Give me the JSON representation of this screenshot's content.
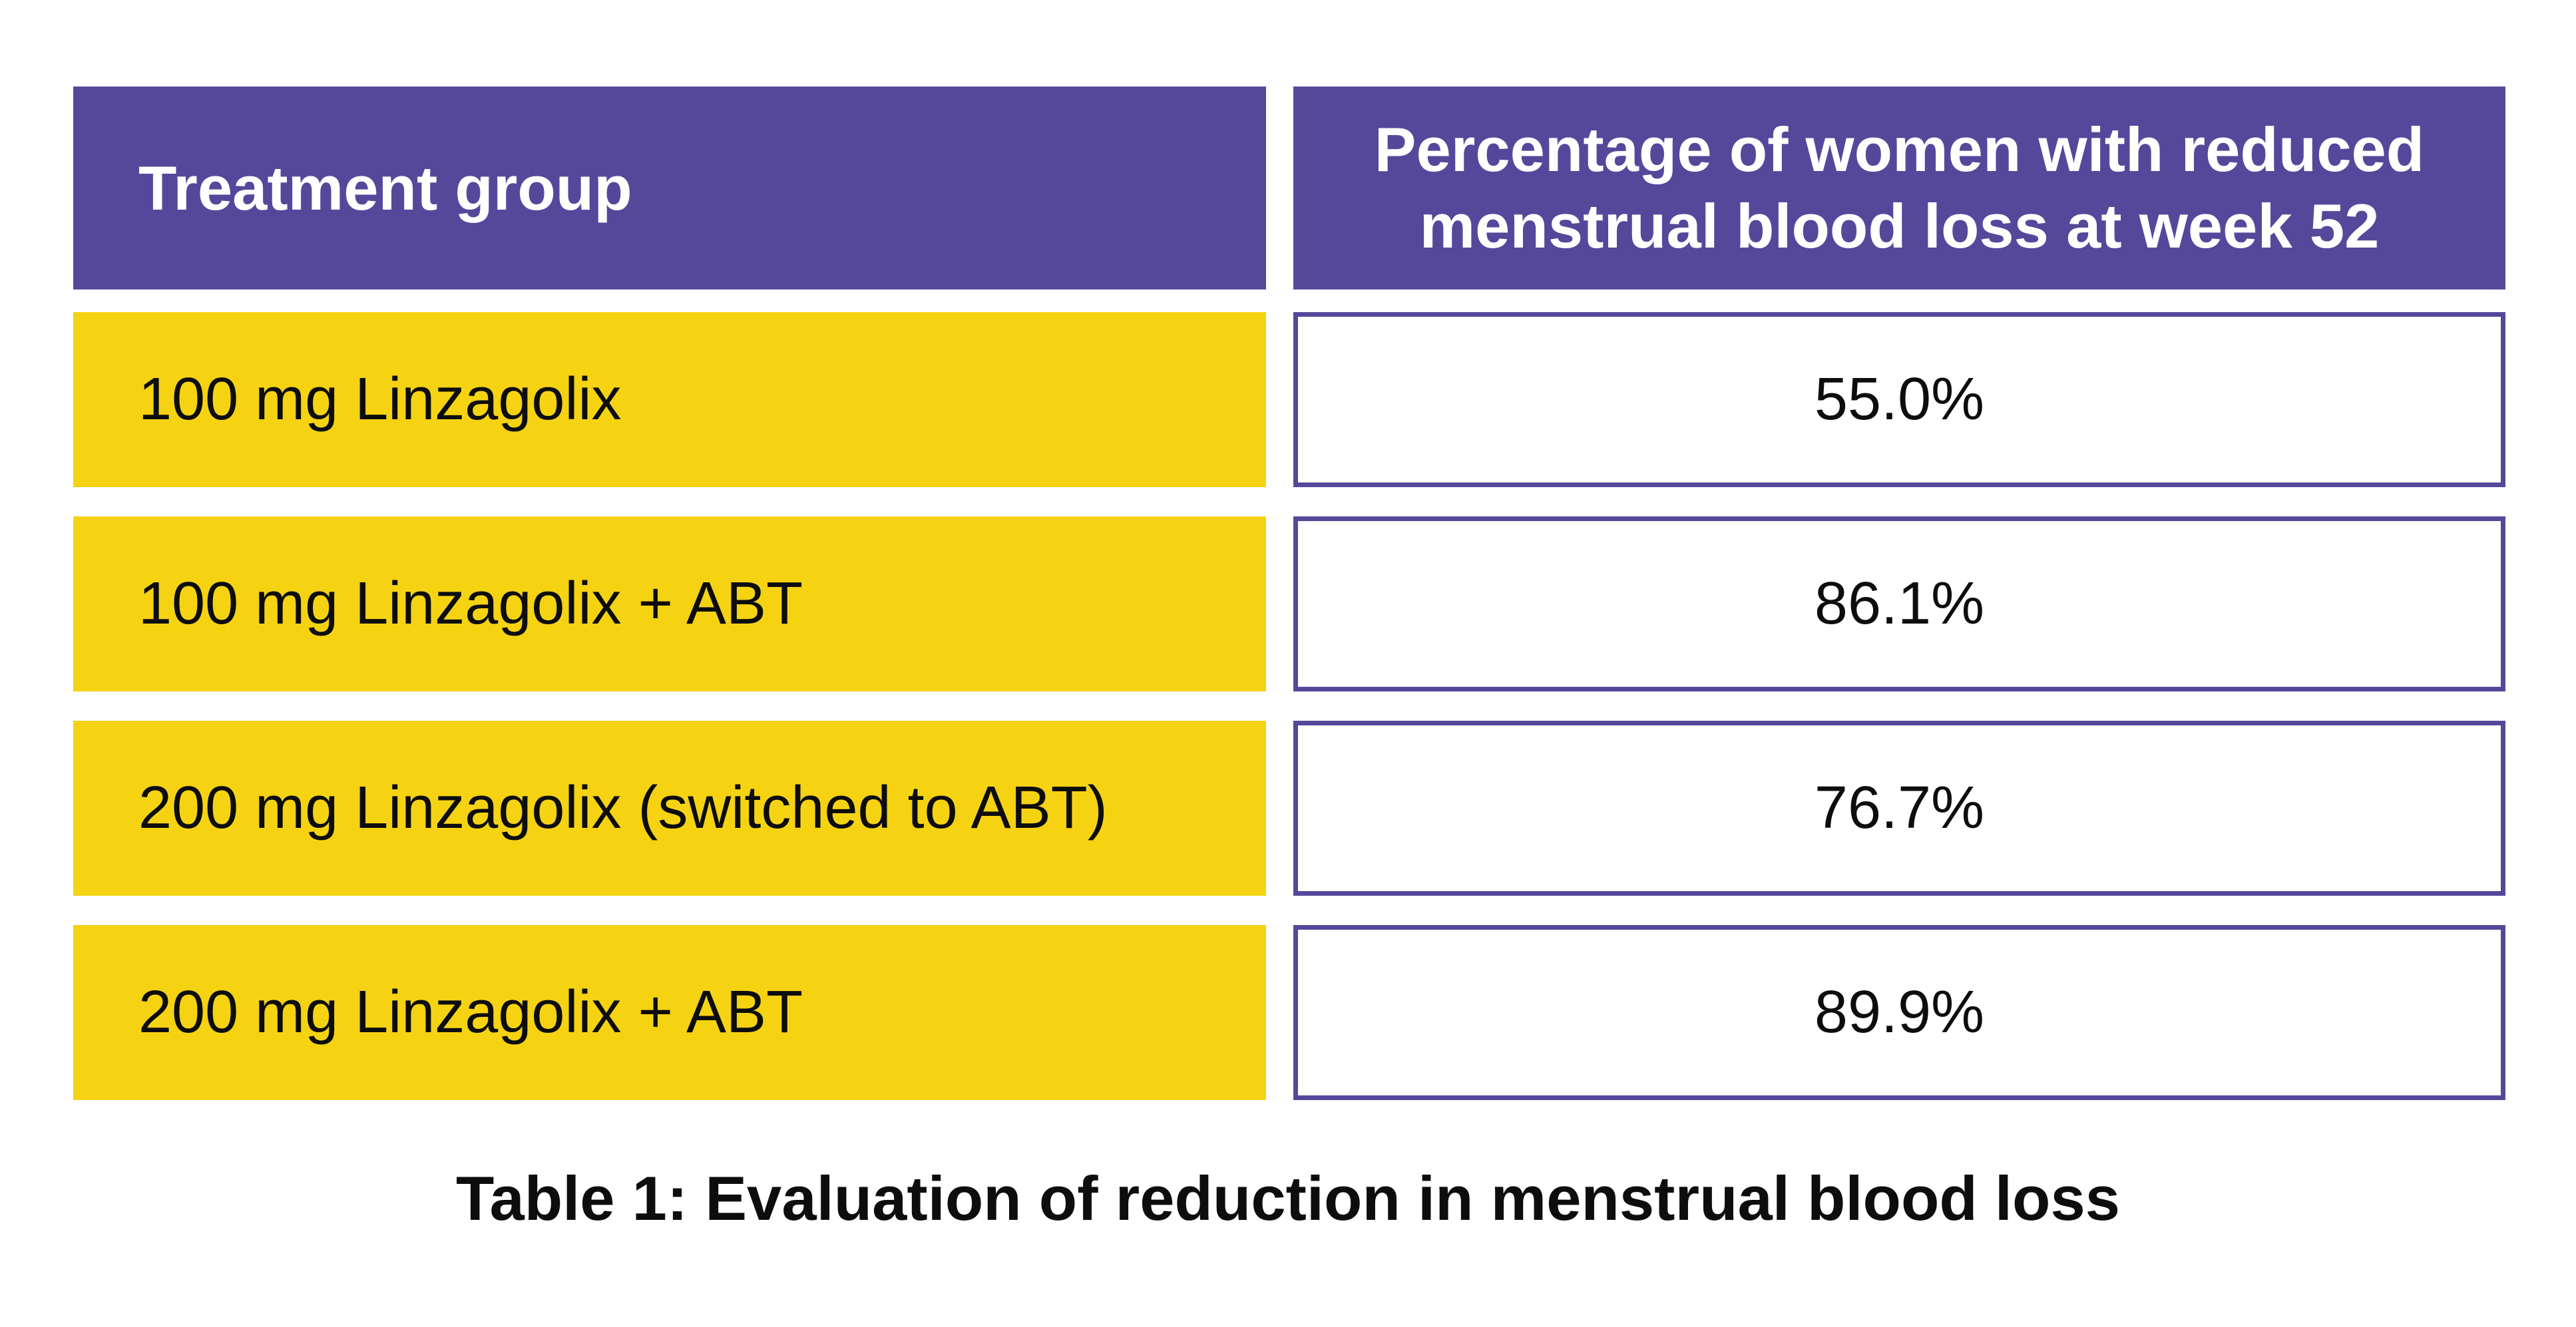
{
  "colors": {
    "purple": "#55489B",
    "yellow": "#F5D313",
    "text_dark": "#0D0D0D",
    "header_text": "#FFFFFF",
    "background": "#FFFFFF"
  },
  "table": {
    "header": {
      "treatment_group": "Treatment group",
      "percentage": "Percentage of women with reduced\nmenstrual blood loss at week 52"
    },
    "rows": [
      {
        "group": "100 mg Linzagolix",
        "value": "55.0%"
      },
      {
        "group": "100 mg Linzagolix + ABT",
        "value": "86.1%"
      },
      {
        "group": "200 mg Linzagolix (switched to ABT)",
        "value": "76.7%"
      },
      {
        "group": "200 mg Linzagolix + ABT",
        "value": "89.9%"
      }
    ],
    "caption": "Table 1: Evaluation of reduction in menstrual blood loss"
  },
  "chart_data": {
    "type": "table",
    "title": "Table 1: Evaluation of reduction in menstrual blood loss",
    "columns": [
      "Treatment group",
      "Percentage of women with reduced menstrual blood loss at week 52"
    ],
    "categories": [
      "100 mg Linzagolix",
      "100 mg Linzagolix + ABT",
      "200 mg Linzagolix (switched to ABT)",
      "200 mg Linzagolix + ABT"
    ],
    "values": [
      55.0,
      86.1,
      76.7,
      89.9
    ],
    "unit": "%"
  }
}
